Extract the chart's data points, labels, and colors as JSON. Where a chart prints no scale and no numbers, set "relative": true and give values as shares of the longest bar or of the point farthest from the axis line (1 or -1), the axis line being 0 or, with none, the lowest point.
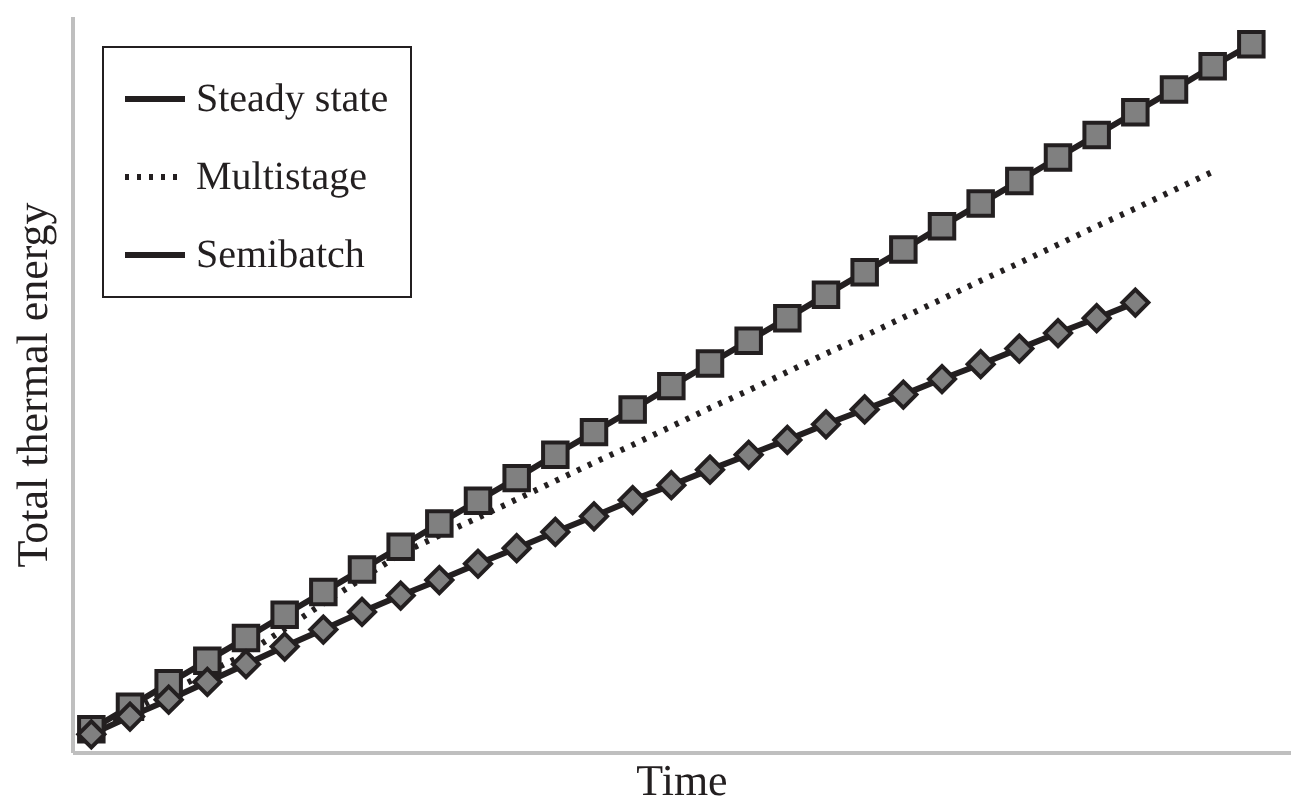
{
  "chart_data": {
    "type": "line",
    "relative": true,
    "xlabel": "Time",
    "ylabel": "Total thermal energy",
    "legend": "top left",
    "grid": false,
    "categories": [
      null,
      null,
      null,
      null,
      null,
      null,
      null,
      null,
      null,
      null,
      null,
      null,
      null,
      null,
      null,
      null,
      null,
      null,
      null,
      null,
      null,
      null,
      null,
      null,
      null,
      null,
      null,
      null,
      null,
      null,
      null
    ],
    "series": [
      {
        "name": "Steady state",
        "color": "#231f20",
        "marker": "square",
        "line_style": "solid",
        "values": [
          0.032,
          0.064,
          0.097,
          0.129,
          0.161,
          0.194,
          0.226,
          0.258,
          0.29,
          0.323,
          0.355,
          0.387,
          0.42,
          0.452,
          0.484,
          0.517,
          0.549,
          0.581,
          0.613,
          0.646,
          0.678,
          0.71,
          0.743,
          0.775,
          0.807,
          0.84,
          0.872,
          0.904,
          0.936,
          0.969,
          1.0
        ]
      },
      {
        "name": "Multistage",
        "color": "#231f20",
        "marker": "none",
        "line_style": "dotted",
        "values": [
          0.03,
          0.057,
          0.085,
          0.112,
          0.139,
          0.174,
          0.21,
          0.245,
          0.28,
          0.306,
          0.331,
          0.357,
          0.383,
          0.409,
          0.434,
          0.46,
          0.486,
          0.511,
          0.537,
          0.563,
          0.588,
          0.614,
          0.64,
          0.666,
          0.691,
          0.717,
          0.743,
          0.768,
          0.794,
          0.82,
          null
        ]
      },
      {
        "name": "Semibatch",
        "color": "#231f20",
        "marker": "diamond",
        "line_style": "solid",
        "values": [
          0.025,
          0.05,
          0.074,
          0.099,
          0.124,
          0.149,
          0.173,
          0.198,
          0.221,
          0.243,
          0.266,
          0.288,
          0.311,
          0.333,
          0.356,
          0.377,
          0.399,
          0.42,
          0.441,
          0.463,
          0.484,
          0.505,
          0.527,
          0.548,
          0.57,
          0.592,
          0.613,
          0.635,
          null,
          null,
          null
        ]
      }
    ]
  }
}
